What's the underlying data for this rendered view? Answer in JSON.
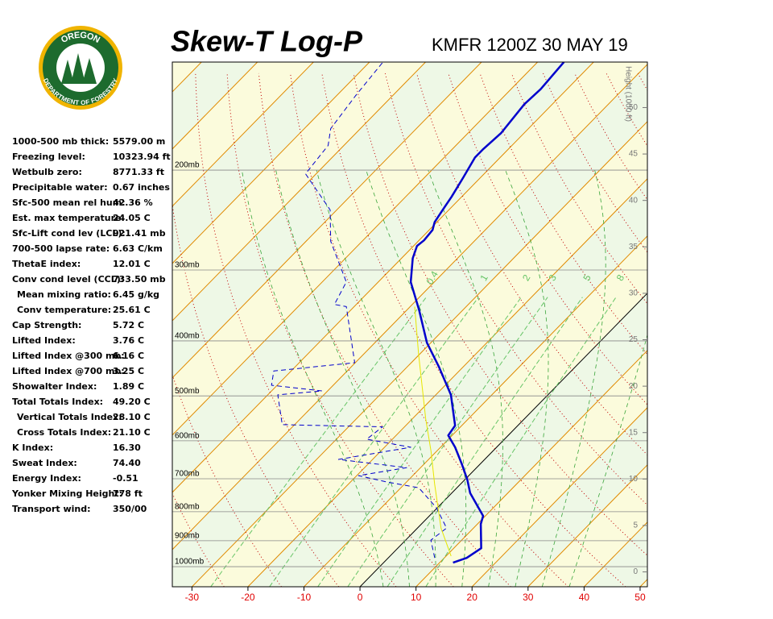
{
  "logo": {
    "top": "OREGON",
    "bottom": "DEPARTMENT OF FORESTRY"
  },
  "stats": [
    {
      "label": "1000-500 mb thick:",
      "value": "5579.00 m"
    },
    {
      "label": "Freezing level:",
      "value": "10323.94 ft"
    },
    {
      "label": "Wetbulb zero:",
      "value": "8771.33 ft"
    },
    {
      "label": "Precipitable water:",
      "value": "0.67 inches"
    },
    {
      "label": "Sfc-500 mean rel hum:",
      "value": "42.36 %"
    },
    {
      "label": "Est. max temperature:",
      "value": "24.05 C"
    },
    {
      "label": "Sfc-Lift cond lev (LCL):",
      "value": "921.41 mb"
    },
    {
      "label": "700-500 lapse rate:",
      "value": "6.63 C/km"
    },
    {
      "label": "ThetaE index:",
      "value": "12.01 C"
    },
    {
      "label": "Conv cond level (CCL):",
      "value": "733.50 mb"
    },
    {
      "label": "Mean mixing ratio:",
      "value": "6.45 g/kg"
    },
    {
      "label": "Conv temperature:",
      "value": "25.61 C"
    },
    {
      "label": "Cap Strength:",
      "value": "5.72 C"
    },
    {
      "label": "Lifted Index:",
      "value": "3.76 C"
    },
    {
      "label": "Lifted Index @300 mb:",
      "value": "6.16 C"
    },
    {
      "label": "Lifted Index @700 mb:",
      "value": "3.25 C"
    },
    {
      "label": "Showalter Index:",
      "value": "1.89 C"
    },
    {
      "label": "Total Totals Index:",
      "value": "49.20 C"
    },
    {
      "label": "Vertical Totals Index:",
      "value": "28.10 C"
    },
    {
      "label": "Cross Totals Index:",
      "value": "21.10 C"
    },
    {
      "label": "K Index:",
      "value": "16.30"
    },
    {
      "label": "Sweat Index:",
      "value": "74.40"
    },
    {
      "label": "Energy Index:",
      "value": "-0.51"
    },
    {
      "label": "Yonker Mixing Height:",
      "value": "778 ft"
    },
    {
      "label": "Transport wind:",
      "value": "350/00"
    }
  ],
  "chart_data": {
    "type": "skewt",
    "title": "Skew-T Log-P",
    "subtitle": "KMFR 1200Z 30 MAY 19",
    "xlim": [
      -33.5,
      51.3
    ],
    "xticks": [
      -30,
      -20,
      -10,
      0,
      10,
      20,
      30,
      40,
      50
    ],
    "ylim": [
      1085,
      129
    ],
    "ylog": true,
    "yticks": [
      {
        "value": 200,
        "label": "200mb"
      },
      {
        "value": 300,
        "label": "300mb"
      },
      {
        "value": 400,
        "label": "400mb"
      },
      {
        "value": 500,
        "label": "500mb"
      },
      {
        "value": 600,
        "label": "600mb"
      },
      {
        "value": 700,
        "label": "700mb"
      },
      {
        "value": 800,
        "label": "800mb"
      },
      {
        "value": 900,
        "label": "900mb"
      },
      {
        "value": 1000,
        "label": "1000mb"
      }
    ],
    "y2label": "Height (1000 ft)",
    "y2lim": [
      -1.6,
      54.9
    ],
    "y2ticks": [
      0,
      5,
      10,
      15,
      20,
      25,
      30,
      35,
      40,
      45,
      50
    ],
    "mixing_ratios": [
      0.4,
      1,
      2,
      3,
      5,
      8
    ],
    "series": [
      {
        "color": "#0000cc",
        "style": "solid",
        "x": [
          12.4,
          14.0,
          14.9,
          10.6,
          9.6,
          3.3,
          0.4,
          -3.4,
          -7.4,
          -10.7,
          -11.2,
          -17.3,
          -24.4,
          -30.7,
          -37.8,
          -44.2,
          -48.0,
          -49.4,
          -49.1,
          -49.4,
          -50.4,
          -51.1,
          -51.8,
          -53.1,
          -54.5,
          -54.5,
          -54.1,
          -55.0,
          -54.7,
          -55.3
        ],
        "y": [
          984,
          965,
          928,
          841,
          814,
          742,
          702,
          658,
          616,
          587,
          564,
          498,
          444,
          403,
          353,
          315,
          286,
          272,
          266,
          255,
          247,
          235,
          223,
          206,
          190,
          184,
          172,
          153,
          144,
          129
        ]
      },
      {
        "color": "#0000cc",
        "style": "dashed",
        "x": [
          8.3,
          4.5,
          5.2,
          -0.1,
          -6.8,
          -13.6,
          -19.7,
          -12.5,
          -26.1,
          -15.3,
          -24.6,
          -23.9,
          -42.2,
          -48.2,
          -41.0,
          -51.0,
          -53.1,
          -40.1,
          -51.4,
          -53.9,
          -55.7,
          -65.6,
          -71.2,
          -81.9,
          -82.8,
          -85.3,
          -86.6,
          -87.6
        ],
        "y": [
          965,
          898,
          855,
          788,
          726,
          709,
          691,
          669,
          647,
          616,
          596,
          567,
          562,
          498,
          490,
          479,
          452,
          437,
          348,
          345,
          315,
          267,
          235,
          203,
          181,
          169,
          148,
          129
        ]
      },
      {
        "color": "#e6e600",
        "style": "thin",
        "x": [
          10.9,
          4.2,
          -4.7,
          -11.0,
          -17.6,
          -30.1,
          -39.2
        ],
        "y": [
          958,
          855,
          714,
          626,
          549,
          423,
          348
        ]
      }
    ]
  }
}
